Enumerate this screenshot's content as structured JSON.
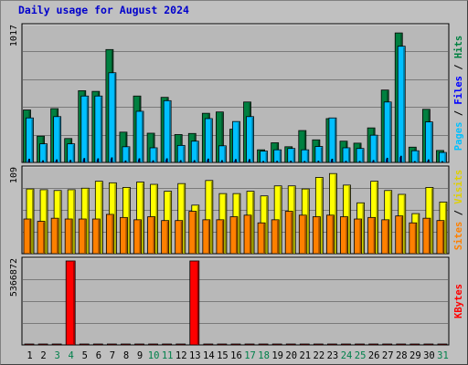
{
  "title": "Daily usage for August 2024",
  "colors": {
    "hits": "#008040",
    "files": "#00c0ff",
    "visits": "#ffff00",
    "sites": "#ff8000",
    "kbytes": "#ff0000",
    "weekend_day": "#00804a",
    "weekday": "#000000",
    "title": "#0000cc"
  },
  "right_labels": {
    "top": {
      "pages": "Pages",
      "sep1": " / ",
      "files": "Files",
      "sep2": " / ",
      "hits": "Hits"
    },
    "mid": {
      "sites": "Sites",
      "sep": " / ",
      "visits": "Visits"
    },
    "bot": {
      "kbytes": "KBytes"
    }
  },
  "chart_data": [
    {
      "type": "bar",
      "title": "Daily usage for August 2024",
      "ymax_label": "1017",
      "ylim": [
        0,
        1017
      ],
      "categories": [
        "1",
        "2",
        "3",
        "4",
        "5",
        "6",
        "7",
        "8",
        "9",
        "10",
        "11",
        "12",
        "13",
        "14",
        "15",
        "16",
        "17",
        "18",
        "19",
        "20",
        "21",
        "22",
        "23",
        "24",
        "25",
        "26",
        "27",
        "28",
        "29",
        "30",
        "31"
      ],
      "weekend_days": [
        "3",
        "4",
        "10",
        "11",
        "17",
        "18",
        "24",
        "25",
        "31"
      ],
      "series": [
        {
          "name": "Hits",
          "values": [
            395,
            198,
            405,
            180,
            540,
            535,
            850,
            228,
            500,
            220,
            490,
            210,
            218,
            370,
            380,
            250,
            455,
            95,
            148,
            118,
            240,
            170,
            330,
            160,
            145,
            260,
            545,
            975,
            115,
            400,
            90
          ]
        },
        {
          "name": "Files",
          "values": [
            335,
            140,
            345,
            140,
            500,
            500,
            675,
            118,
            385,
            110,
            465,
            128,
            160,
            330,
            125,
            308,
            345,
            85,
            95,
            105,
            95,
            120,
            335,
            110,
            105,
            205,
            455,
            875,
            88,
            305,
            75
          ]
        },
        {
          "name": "Pages",
          "values": [
            25,
            13,
            20,
            16,
            30,
            28,
            35,
            12,
            28,
            13,
            28,
            14,
            14,
            26,
            14,
            22,
            22,
            8,
            9,
            10,
            8,
            10,
            25,
            9,
            8,
            15,
            32,
            47,
            7,
            20,
            6
          ]
        }
      ]
    },
    {
      "type": "bar",
      "ymax_label": "109",
      "ylim": [
        0,
        109
      ],
      "categories": [
        "1",
        "2",
        "3",
        "4",
        "5",
        "6",
        "7",
        "8",
        "9",
        "10",
        "11",
        "12",
        "13",
        "14",
        "15",
        "16",
        "17",
        "18",
        "19",
        "20",
        "21",
        "22",
        "23",
        "24",
        "25",
        "26",
        "27",
        "28",
        "29",
        "30",
        "31"
      ],
      "series": [
        {
          "name": "Visits",
          "values": [
            84,
            83,
            82,
            83,
            85,
            94,
            92,
            86,
            93,
            90,
            81,
            91,
            63,
            95,
            78,
            78,
            81,
            75,
            88,
            88,
            84,
            99,
            104,
            89,
            66,
            94,
            82,
            77,
            52,
            86,
            67
          ]
        },
        {
          "name": "Sites",
          "values": [
            45,
            42,
            46,
            45,
            45,
            45,
            51,
            47,
            44,
            48,
            43,
            43,
            55,
            44,
            44,
            48,
            50,
            40,
            44,
            55,
            50,
            48,
            50,
            48,
            45,
            47,
            44,
            49,
            40,
            46,
            43
          ]
        }
      ]
    },
    {
      "type": "bar",
      "ymax_label": "5366872",
      "ylim": [
        0,
        5366872
      ],
      "categories": [
        "1",
        "2",
        "3",
        "4",
        "5",
        "6",
        "7",
        "8",
        "9",
        "10",
        "11",
        "12",
        "13",
        "14",
        "15",
        "16",
        "17",
        "18",
        "19",
        "20",
        "21",
        "22",
        "23",
        "24",
        "25",
        "26",
        "27",
        "28",
        "29",
        "30",
        "31"
      ],
      "series": [
        {
          "name": "KBytes",
          "values": [
            40000,
            40000,
            40000,
            5366872,
            40000,
            40000,
            40000,
            40000,
            40000,
            40000,
            40000,
            40000,
            5366872,
            40000,
            40000,
            40000,
            40000,
            40000,
            40000,
            40000,
            40000,
            40000,
            40000,
            40000,
            40000,
            40000,
            40000,
            40000,
            40000,
            40000,
            40000
          ]
        }
      ]
    }
  ]
}
